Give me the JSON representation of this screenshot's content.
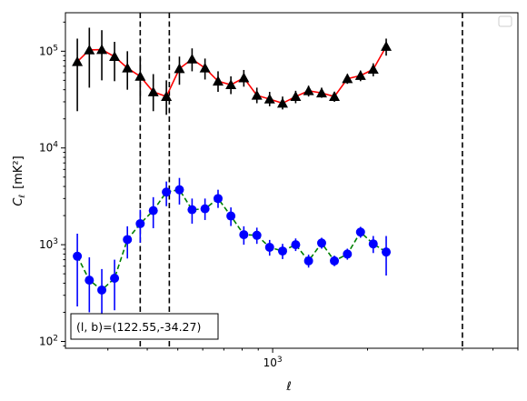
{
  "chart_data": {
    "type": "scatter",
    "title": "",
    "xlabel": "ℓ",
    "ylabel_main": "C",
    "ylabel_sub": "ℓ",
    "ylabel_unit": "[mK²]",
    "x_scale": "log",
    "y_scale": "log",
    "xlim": [
      220,
      6000
    ],
    "ylim": [
      85,
      250000
    ],
    "x_tick_labels": [
      {
        "value": 1000,
        "base": "10",
        "exp": "3"
      }
    ],
    "y_tick_labels": [
      {
        "value": 100,
        "base": "10",
        "exp": "2"
      },
      {
        "value": 1000,
        "base": "10",
        "exp": "3"
      },
      {
        "value": 10000,
        "base": "10",
        "exp": "4"
      },
      {
        "value": 100000,
        "base": "10",
        "exp": "5"
      }
    ],
    "vlines": [
      380,
      470,
      4000
    ],
    "annotation": "(l, b)=(122.55,-34.27)",
    "legend": "top-right",
    "grid": false,
    "series": [
      {
        "marker": "triangle",
        "marker_color": "#000000",
        "line_color": "#ff0000",
        "line_style": "solid",
        "points": [
          {
            "x": 240,
            "y": 78000,
            "lo": 24000,
            "hi": 135000
          },
          {
            "x": 262,
            "y": 103000,
            "lo": 42000,
            "hi": 175000
          },
          {
            "x": 287,
            "y": 104000,
            "lo": 50000,
            "hi": 165000
          },
          {
            "x": 315,
            "y": 88000,
            "lo": 49000,
            "hi": 125000
          },
          {
            "x": 346,
            "y": 67000,
            "lo": 40000,
            "hi": 100000
          },
          {
            "x": 380,
            "y": 55000,
            "lo": 32000,
            "hi": 85000
          },
          {
            "x": 418,
            "y": 38000,
            "lo": 24000,
            "hi": 58000
          },
          {
            "x": 460,
            "y": 34000,
            "lo": 22000,
            "hi": 50000
          },
          {
            "x": 506,
            "y": 66000,
            "lo": 45000,
            "hi": 88000
          },
          {
            "x": 555,
            "y": 83000,
            "lo": 62000,
            "hi": 107000
          },
          {
            "x": 610,
            "y": 67000,
            "lo": 51000,
            "hi": 84000
          },
          {
            "x": 671,
            "y": 49000,
            "lo": 38000,
            "hi": 62000
          },
          {
            "x": 737,
            "y": 45000,
            "lo": 36000,
            "hi": 55000
          },
          {
            "x": 810,
            "y": 53000,
            "lo": 43000,
            "hi": 64000
          },
          {
            "x": 891,
            "y": 35000,
            "lo": 29000,
            "hi": 42000
          },
          {
            "x": 978,
            "y": 32000,
            "lo": 27000,
            "hi": 38000
          },
          {
            "x": 1075,
            "y": 29000,
            "lo": 25000,
            "hi": 34000
          },
          {
            "x": 1183,
            "y": 34000,
            "lo": 29000,
            "hi": 39000
          },
          {
            "x": 1300,
            "y": 39000,
            "lo": 34000,
            "hi": 44000
          },
          {
            "x": 1430,
            "y": 37000,
            "lo": 33000,
            "hi": 42000
          },
          {
            "x": 1570,
            "y": 34000,
            "lo": 30000,
            "hi": 38000
          },
          {
            "x": 1726,
            "y": 52000,
            "lo": 46000,
            "hi": 58000
          },
          {
            "x": 1900,
            "y": 56000,
            "lo": 49000,
            "hi": 63000
          },
          {
            "x": 2085,
            "y": 65000,
            "lo": 55000,
            "hi": 75000
          },
          {
            "x": 2292,
            "y": 112000,
            "lo": 90000,
            "hi": 135000
          }
        ]
      },
      {
        "marker": "circle",
        "marker_color": "#0000ff",
        "line_color": "#008000",
        "line_style": "dashed",
        "points": [
          {
            "x": 240,
            "y": 760,
            "lo": 230,
            "hi": 1300
          },
          {
            "x": 262,
            "y": 430,
            "lo": 200,
            "hi": 740
          },
          {
            "x": 287,
            "y": 340,
            "lo": 140,
            "hi": 560
          },
          {
            "x": 315,
            "y": 450,
            "lo": 210,
            "hi": 700
          },
          {
            "x": 346,
            "y": 1130,
            "lo": 720,
            "hi": 1550
          },
          {
            "x": 380,
            "y": 1650,
            "lo": 1050,
            "hi": 2300
          },
          {
            "x": 418,
            "y": 2250,
            "lo": 1480,
            "hi": 3100
          },
          {
            "x": 460,
            "y": 3500,
            "lo": 2500,
            "hi": 4500
          },
          {
            "x": 506,
            "y": 3700,
            "lo": 2600,
            "hi": 4900
          },
          {
            "x": 555,
            "y": 2300,
            "lo": 1650,
            "hi": 3000
          },
          {
            "x": 610,
            "y": 2350,
            "lo": 1800,
            "hi": 3000
          },
          {
            "x": 671,
            "y": 3000,
            "lo": 2400,
            "hi": 3700
          },
          {
            "x": 737,
            "y": 1980,
            "lo": 1560,
            "hi": 2430
          },
          {
            "x": 810,
            "y": 1270,
            "lo": 1000,
            "hi": 1550
          },
          {
            "x": 891,
            "y": 1250,
            "lo": 1020,
            "hi": 1500
          },
          {
            "x": 978,
            "y": 940,
            "lo": 770,
            "hi": 1120
          },
          {
            "x": 1075,
            "y": 860,
            "lo": 710,
            "hi": 1020
          },
          {
            "x": 1183,
            "y": 1000,
            "lo": 860,
            "hi": 1160
          },
          {
            "x": 1300,
            "y": 680,
            "lo": 580,
            "hi": 790
          },
          {
            "x": 1430,
            "y": 1040,
            "lo": 910,
            "hi": 1180
          },
          {
            "x": 1570,
            "y": 680,
            "lo": 600,
            "hi": 770
          },
          {
            "x": 1726,
            "y": 800,
            "lo": 700,
            "hi": 910
          },
          {
            "x": 1900,
            "y": 1350,
            "lo": 1180,
            "hi": 1530
          },
          {
            "x": 2085,
            "y": 1020,
            "lo": 820,
            "hi": 1230
          },
          {
            "x": 2292,
            "y": 840,
            "lo": 480,
            "hi": 1230
          }
        ]
      }
    ]
  }
}
